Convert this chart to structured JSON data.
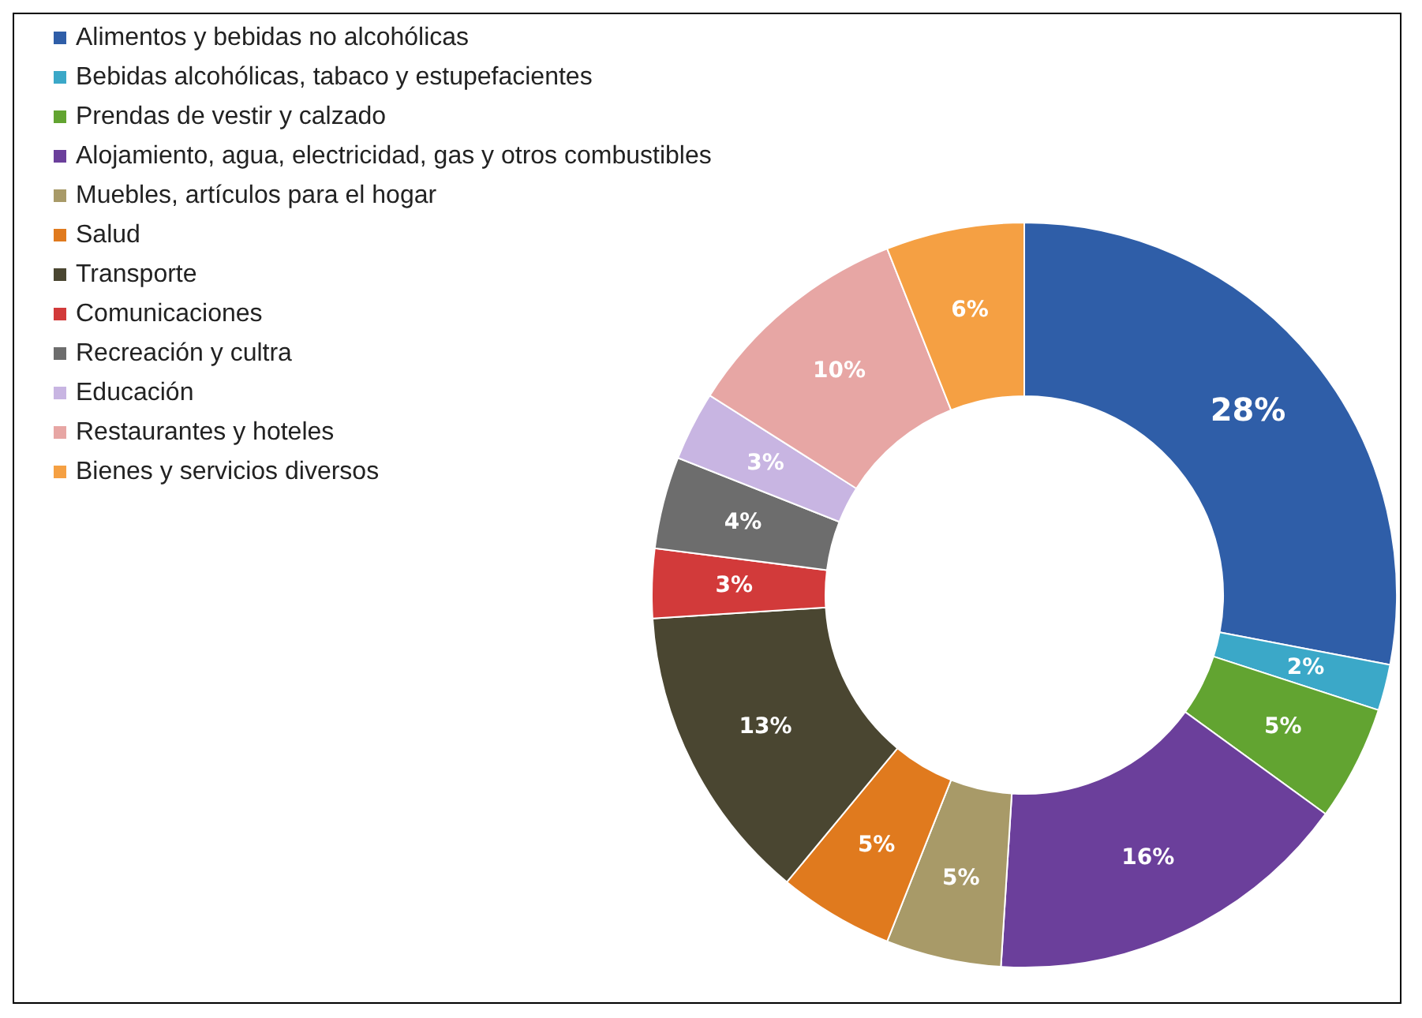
{
  "chart_data": {
    "type": "donut",
    "categories": [
      "Alimentos y bebidas no alcohólicas",
      "Bebidas alcohólicas, tabaco y estupefacientes",
      "Prendas de vestir y calzado",
      "Alojamiento, agua, electricidad, gas y otros combustibles",
      "Muebles, artículos para el hogar",
      "Salud",
      "Transporte",
      "Comunicaciones",
      "Recreación y cultra",
      "Educación",
      "Restaurantes y hoteles",
      "Bienes y servicios diversos"
    ],
    "values": [
      28,
      2,
      5,
      16,
      5,
      5,
      13,
      3,
      4,
      3,
      10,
      6
    ],
    "value_labels": [
      "28%",
      "2%",
      "5%",
      "16%",
      "5%",
      "5%",
      "13%",
      "3%",
      "4%",
      "3%",
      "10%",
      "6%"
    ],
    "colors": [
      "#2f5ea8",
      "#3ba8c8",
      "#62a431",
      "#6b3f9b",
      "#a89a68",
      "#e07a1e",
      "#4a4631",
      "#d23a3a",
      "#6d6d6d",
      "#c8b5e2",
      "#e7a6a4",
      "#f5a043"
    ],
    "legend": "top left"
  }
}
